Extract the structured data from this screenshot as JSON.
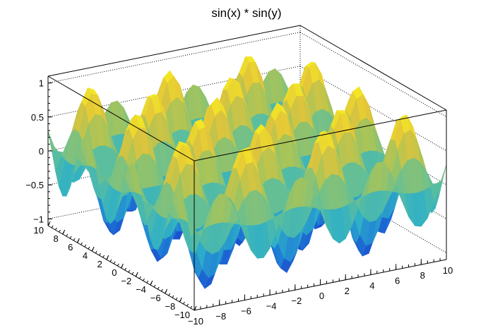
{
  "chart_data": {
    "type": "surface",
    "title": "sin(x) * sin(y)",
    "function": "sin(x) * sin(y)",
    "x_range": [
      -10,
      10
    ],
    "y_range": [
      -10,
      10
    ],
    "z_range": [
      -1.1,
      1.1
    ],
    "x_ticks": [
      -10,
      -8,
      -6,
      -4,
      -2,
      0,
      2,
      4,
      6,
      8,
      10
    ],
    "y_ticks": [
      -10,
      -8,
      -6,
      -4,
      -2,
      0,
      2,
      4,
      6,
      8,
      10
    ],
    "z_ticks": [
      -1,
      -0.5,
      0,
      0.5,
      1
    ],
    "x_tick_labels": [
      "−10",
      "−8",
      "−6",
      "−4",
      "−2",
      "0",
      "2",
      "4",
      "6",
      "8",
      "10"
    ],
    "y_tick_labels": [
      "−10",
      "−8",
      "−6",
      "−4",
      "−2",
      "0",
      "2",
      "4",
      "6",
      "8",
      "10"
    ],
    "z_tick_labels": [
      "−1",
      "−0.5",
      "0",
      "0.5",
      "1"
    ],
    "xlabel": "",
    "ylabel": "",
    "zlabel": "",
    "grid": true,
    "colormap": [
      "#1a3fcc",
      "#1f7fd6",
      "#2fb0c6",
      "#5fbf9a",
      "#a6c45a",
      "#e2c43a",
      "#f8f020"
    ]
  }
}
